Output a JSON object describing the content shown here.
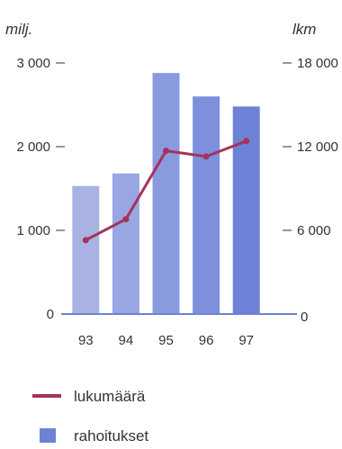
{
  "chart_data": {
    "type": "bar",
    "categories": [
      "93",
      "94",
      "95",
      "96",
      "97"
    ],
    "left_axis": {
      "unit": "milj.",
      "ylim": [
        0,
        3000
      ],
      "ticks": [
        0,
        1000,
        2000,
        3000
      ],
      "tick_labels": [
        "0",
        "1 000",
        "2 000",
        "3 000"
      ]
    },
    "right_axis": {
      "unit": "lkm",
      "ylim": [
        0,
        18000
      ],
      "ticks": [
        0,
        6000,
        12000,
        18000
      ],
      "tick_labels": [
        "0",
        "6 000",
        "12 000",
        "18 000"
      ]
    },
    "series": [
      {
        "name": "rahoitukset",
        "type": "bar",
        "axis": "left",
        "values": [
          1530,
          1680,
          2880,
          2600,
          2480
        ],
        "colors": [
          "#a8b3e3",
          "#98a6e1",
          "#8a9adf",
          "#7e90dc",
          "#6d82d6"
        ]
      },
      {
        "name": "lukumäärä",
        "type": "line",
        "axis": "right",
        "values": [
          5300,
          6800,
          11700,
          11300,
          12400
        ],
        "color": "#a5325a"
      }
    ],
    "axis_color": "#6d82d6",
    "grid": false,
    "legend": {
      "position": "bottom-left",
      "labels": [
        "lukumäärä",
        "rahoitukset"
      ]
    }
  }
}
